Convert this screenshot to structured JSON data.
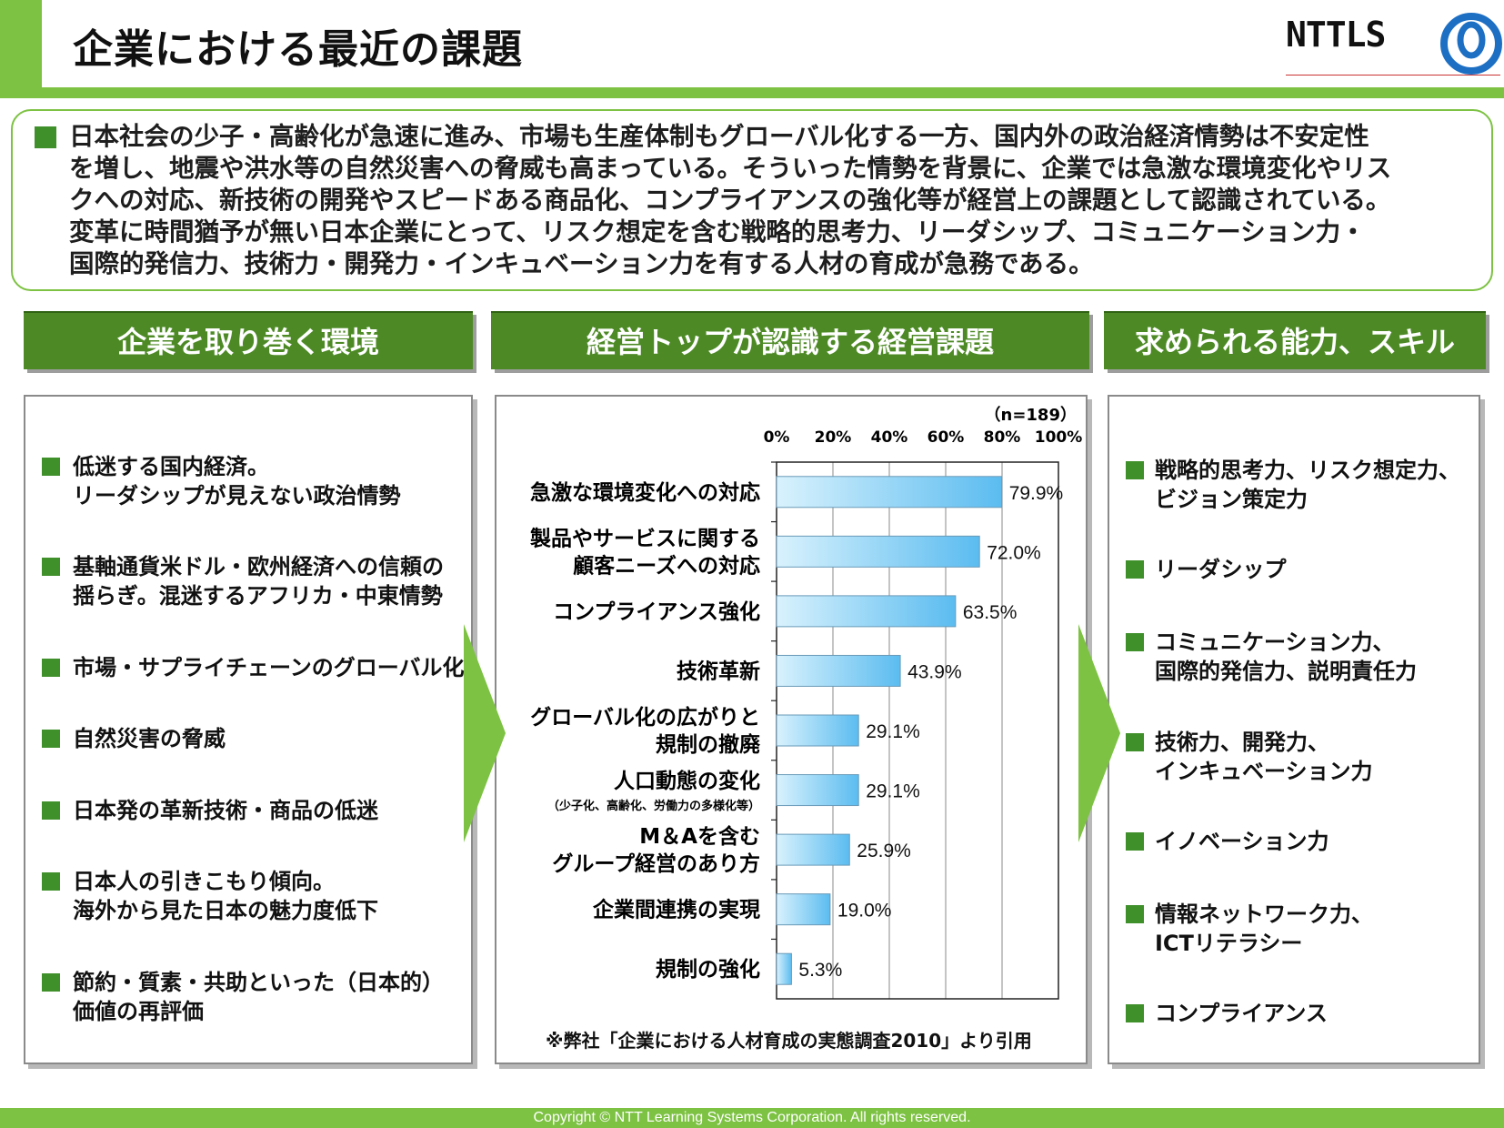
{
  "title": "企業における最近の課題",
  "logo": {
    "text": "NTTLS"
  },
  "intro": "日本社会の少子・高齢化が急速に進み、市場も生産体制もグローバル化する一方、国内外の政治経済情勢は不安定性\nを増し、地震や洪水等の自然災害への脅威も高まっている。そういった情勢を背景に、企業では急激な環境変化やリス\nクへの対応、新技術の開発やスピードある商品化、コンプライアンスの強化等が経営上の課題として認識されている。\n変革に時間猶予が無い日本企業にとって、リスク想定を含む戦略的思考力、リーダシップ、コミュニケーション力・\n国際的発信力、技術力・開発力・インキュベーション力を有する人材の育成が急務である。",
  "columns": {
    "left_header": "企業を取り巻く環境",
    "mid_header": "経営トップが認識する経営課題",
    "right_header": "求められる能力、スキル"
  },
  "left_items": [
    "低迷する国内経済。\nリーダシップが見えない政治情勢",
    "基軸通貨米ドル・欧州経済への信頼の\n揺らぎ。混迷するアフリカ・中東情勢",
    "市場・サプライチェーンのグローバル化",
    "自然災害の脅威",
    "日本発の革新技術・商品の低迷",
    "日本人の引きこもり傾向。\n海外から見た日本の魅力度低下",
    "節約・質素・共助といった（日本的）\n価値の再評価"
  ],
  "right_items": [
    "戦略的思考力、リスク想定力、\nビジョン策定力",
    "リーダシップ",
    "コミュニケーション力、\n国際的発信力、説明責任力",
    "技術力、開発力、\nインキュベーション力",
    "イノベーション力",
    "情報ネットワーク力、\nICTリテラシー",
    "コンプライアンス"
  ],
  "chart_data": {
    "type": "bar",
    "orientation": "horizontal",
    "n_label": "（n=189）",
    "categories": [
      "急激な環境変化への対応",
      "製品やサービスに関する\n顧客ニーズへの対応",
      "コンプライアンス強化",
      "技術革新",
      "グローバル化の広がりと\n規制の撤廃",
      "人口動態の変化",
      "M＆Aを含む\nグループ経営のあり方",
      "企業間連携の実現",
      "規制の強化"
    ],
    "category_notes": [
      "",
      "",
      "",
      "",
      "",
      "（少子化、高齢化、労働力の多様化等）",
      "",
      "",
      ""
    ],
    "values": [
      79.9,
      72.0,
      63.5,
      43.9,
      29.1,
      29.1,
      25.9,
      19.0,
      5.3
    ],
    "value_labels": [
      "79.9%",
      "72.0%",
      "63.5%",
      "43.9%",
      "29.1%",
      "29.1%",
      "25.9%",
      "19.0%",
      "5.3%"
    ],
    "xlim": [
      0,
      100
    ],
    "x_ticks": [
      "0%",
      "20%",
      "40%",
      "60%",
      "80%",
      "100%"
    ],
    "grid": true,
    "bar_color": "#6cc5f0"
  },
  "source_note": "※弊社「企業における人材育成の実態調査2010」より引用",
  "footer": "Copyright © NTT Learning Systems Corporation. All rights reserved."
}
